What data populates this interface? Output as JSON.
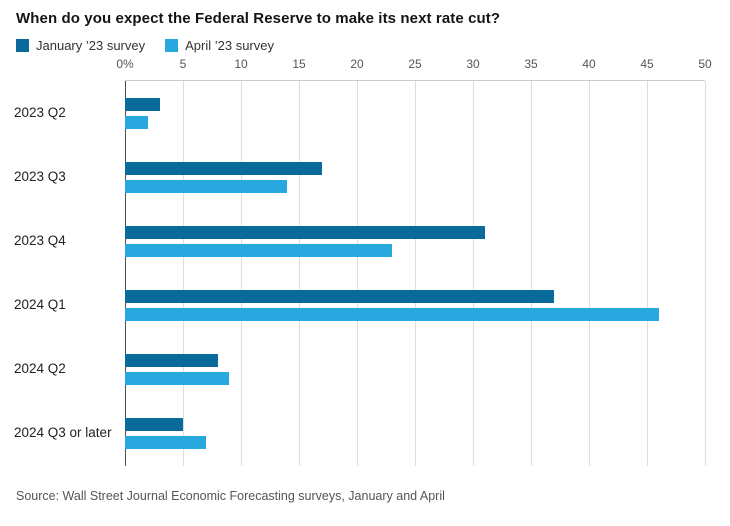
{
  "title": "When do you expect the Federal Reserve to make its next rate cut?",
  "source": "Source: Wall Street Journal Economic Forecasting surveys, January and April",
  "colors": {
    "january": "#0b6a9c",
    "april": "#29a8e0",
    "gridline": "#dddddd",
    "zero_line": "#4d4d4d"
  },
  "legend": [
    {
      "label": "January ’23 survey",
      "color": "#0b6a9c"
    },
    {
      "label": "April ’23 survey",
      "color": "#29a8e0"
    }
  ],
  "chart_data": {
    "type": "bar",
    "orientation": "horizontal",
    "title": "When do you expect the Federal Reserve to make its next rate cut?",
    "categories": [
      "2023 Q2",
      "2023 Q3",
      "2023 Q4",
      "2024 Q1",
      "2024 Q2",
      "2024 Q3 or later"
    ],
    "series": [
      {
        "name": "January ’23 survey",
        "color": "#0b6a9c",
        "values": [
          3,
          17,
          31,
          37,
          8,
          5
        ]
      },
      {
        "name": "April ’23 survey",
        "color": "#29a8e0",
        "values": [
          2,
          14,
          23,
          46,
          9,
          7
        ]
      }
    ],
    "xlabel": "",
    "ylabel": "",
    "xlim": [
      0,
      50
    ],
    "xticks": [
      0,
      5,
      10,
      15,
      20,
      25,
      30,
      35,
      40,
      45,
      50
    ],
    "xtick_labels": [
      "0%",
      "5",
      "10",
      "15",
      "20",
      "25",
      "30",
      "35",
      "40",
      "45",
      "50"
    ],
    "grid": "vertical",
    "legend_position": "top-left",
    "value_unit": "percent of respondents"
  }
}
